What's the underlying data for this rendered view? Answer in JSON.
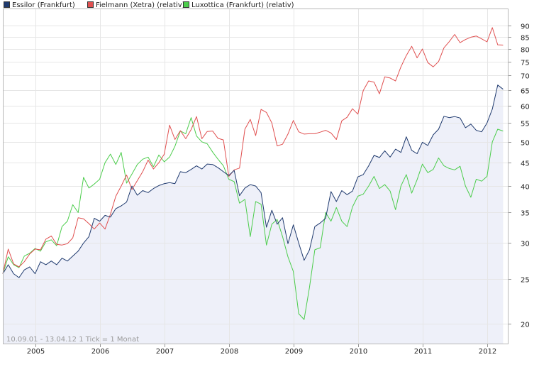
{
  "chart_data": {
    "type": "line",
    "title": "",
    "xlabel": "",
    "ylabel": "",
    "y_scale": "log",
    "ylim": [
      18,
      98
    ],
    "xlim": [
      "2004-07-01",
      "2012-05-01"
    ],
    "grid": true,
    "legend_position": "top-left",
    "y_ticks": [
      20,
      25,
      30,
      35,
      40,
      45,
      50,
      55,
      60,
      65,
      70,
      75,
      80,
      85,
      90
    ],
    "x_ticks": [
      {
        "label": "2005",
        "date": "2005-01-01"
      },
      {
        "label": "2006",
        "date": "2006-01-01"
      },
      {
        "label": "2007",
        "date": "2007-01-01"
      },
      {
        "label": "2008",
        "date": "2008-01-01"
      },
      {
        "label": "2009",
        "date": "2009-01-01"
      },
      {
        "label": "2010",
        "date": "2010-01-01"
      },
      {
        "label": "2011",
        "date": "2011-01-01"
      },
      {
        "label": "2012",
        "date": "2012-01-01"
      }
    ],
    "x_months": [
      "2004-07",
      "2004-08",
      "2004-09",
      "2004-10",
      "2004-11",
      "2004-12",
      "2005-01",
      "2005-02",
      "2005-03",
      "2005-04",
      "2005-05",
      "2005-06",
      "2005-07",
      "2005-08",
      "2005-09",
      "2005-10",
      "2005-11",
      "2005-12",
      "2006-01",
      "2006-02",
      "2006-03",
      "2006-04",
      "2006-05",
      "2006-06",
      "2006-07",
      "2006-08",
      "2006-09",
      "2006-10",
      "2006-11",
      "2006-12",
      "2007-01",
      "2007-02",
      "2007-03",
      "2007-04",
      "2007-05",
      "2007-06",
      "2007-07",
      "2007-08",
      "2007-09",
      "2007-10",
      "2007-11",
      "2007-12",
      "2008-01",
      "2008-02",
      "2008-03",
      "2008-04",
      "2008-05",
      "2008-06",
      "2008-07",
      "2008-08",
      "2008-09",
      "2008-10",
      "2008-11",
      "2008-12",
      "2009-01",
      "2009-02",
      "2009-03",
      "2009-04",
      "2009-05",
      "2009-06",
      "2009-07",
      "2009-08",
      "2009-09",
      "2009-10",
      "2009-11",
      "2009-12",
      "2010-01",
      "2010-02",
      "2010-03",
      "2010-04",
      "2010-05",
      "2010-06",
      "2010-07",
      "2010-08",
      "2010-09",
      "2010-10",
      "2010-11",
      "2010-12",
      "2011-01",
      "2011-02",
      "2011-03",
      "2011-04",
      "2011-05",
      "2011-06",
      "2011-07",
      "2011-08",
      "2011-09",
      "2011-10",
      "2011-11",
      "2011-12",
      "2012-01",
      "2012-02",
      "2012-03",
      "2012-04"
    ],
    "series": [
      {
        "name": "Essilor (Frankfurt)",
        "color": "#1f3a6e",
        "fill": "#eef0f9",
        "values": [
          25.7,
          26.9,
          25.7,
          25.2,
          26.2,
          26.6,
          25.7,
          27.3,
          26.9,
          27.4,
          26.9,
          27.8,
          27.4,
          28.1,
          28.8,
          30.0,
          31.0,
          34.0,
          33.5,
          34.5,
          34.2,
          35.7,
          36.2,
          36.9,
          40.0,
          38.2,
          39.1,
          38.7,
          39.5,
          40.1,
          40.5,
          40.7,
          40.5,
          43.0,
          42.8,
          43.5,
          44.3,
          43.6,
          44.7,
          44.6,
          43.9,
          43.0,
          42.2,
          43.3,
          38.1,
          39.6,
          40.3,
          40.0,
          38.7,
          32.5,
          35.4,
          33.0,
          34.1,
          29.9,
          32.9,
          30.0,
          27.5,
          29.0,
          32.6,
          33.2,
          34.0,
          38.9,
          37.0,
          39.1,
          38.3,
          39.0,
          41.9,
          42.4,
          44.3,
          46.7,
          46.2,
          47.8,
          46.3,
          48.2,
          47.4,
          51.3,
          47.9,
          47.1,
          49.9,
          49.1,
          51.8,
          53.3,
          56.9,
          56.5,
          56.8,
          56.4,
          53.7,
          54.7,
          53.0,
          52.6,
          55.0,
          59.0,
          66.6,
          65.2
        ]
      },
      {
        "name": "Fielmann (Xetra) (relativ)",
        "color": "#e05050",
        "values": [
          25.7,
          29.1,
          27.0,
          26.6,
          27.3,
          28.4,
          29.1,
          29.0,
          30.6,
          31.1,
          29.8,
          29.7,
          29.9,
          30.8,
          34.1,
          33.9,
          33.1,
          32.2,
          33.2,
          32.2,
          34.7,
          38.0,
          40.0,
          42.3,
          39.3,
          41.1,
          43.0,
          45.6,
          43.6,
          45.0,
          47.0,
          54.4,
          50.6,
          52.9,
          50.8,
          53.2,
          56.8,
          50.8,
          52.7,
          52.8,
          50.9,
          50.5,
          42.0,
          43.4,
          43.8,
          53.3,
          56.0,
          51.6,
          58.9,
          58.0,
          55.0,
          49.0,
          49.4,
          52.0,
          55.7,
          52.6,
          52.0,
          52.1,
          52.1,
          52.5,
          53.0,
          52.3,
          50.6,
          55.6,
          56.6,
          59.1,
          57.5,
          64.8,
          68.0,
          67.6,
          63.7,
          69.4,
          69.0,
          68.0,
          73.0,
          77.3,
          81.0,
          76.4,
          79.9,
          74.6,
          73.0,
          75.0,
          80.4,
          83.0,
          86.0,
          82.5,
          83.8,
          84.8,
          85.3,
          84.1,
          82.8,
          89.0,
          81.6,
          81.5
        ]
      },
      {
        "name": "Luxottica (Frankfurt) (relativ)",
        "color": "#4ccd4c",
        "values": [
          25.7,
          28.0,
          26.9,
          26.5,
          28.1,
          28.5,
          29.2,
          28.8,
          30.2,
          30.5,
          29.6,
          32.6,
          33.5,
          36.4,
          35.0,
          41.8,
          39.6,
          40.4,
          41.4,
          45.0,
          47.0,
          44.6,
          47.4,
          40.6,
          42.5,
          44.6,
          45.8,
          46.3,
          44.1,
          46.8,
          45.2,
          46.3,
          48.9,
          52.8,
          52.1,
          56.5,
          51.5,
          50.0,
          49.5,
          47.5,
          45.8,
          44.3,
          41.4,
          40.9,
          36.7,
          37.4,
          31.0,
          37.0,
          36.5,
          29.7,
          33.0,
          33.8,
          31.0,
          28.0,
          26.0,
          21.0,
          20.4,
          24.0,
          29.0,
          29.3,
          35.0,
          33.5,
          35.9,
          33.5,
          32.6,
          36.0,
          38.0,
          38.4,
          40.0,
          42.0,
          39.5,
          40.3,
          39.0,
          35.5,
          40.0,
          42.4,
          38.6,
          41.3,
          44.7,
          42.8,
          43.5,
          46.1,
          44.3,
          43.7,
          43.4,
          44.2,
          40.0,
          37.8,
          41.4,
          41.0,
          42.0,
          50.0,
          53.3,
          52.8
        ]
      }
    ],
    "footer": "10.09.01 - 13.04.12   1 Tick = 1 Monat"
  }
}
